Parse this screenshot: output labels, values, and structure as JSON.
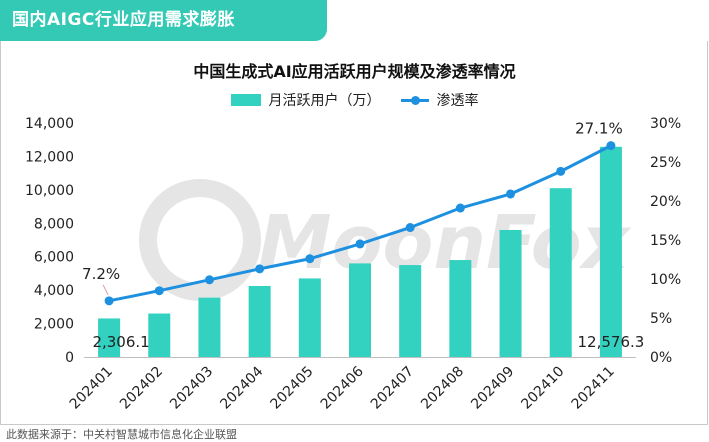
{
  "banner": {
    "text": "国内AIGC行业应用需求膨胀"
  },
  "watermark": {
    "text": "MoonFox"
  },
  "source": {
    "text": "此数据来源于：中关村智慧城市信息化企业联盟"
  },
  "colors": {
    "bar": "#33d1bf",
    "line": "#1e90e0",
    "banner": "#33c9b5",
    "watermark": "#e5e5e5"
  },
  "chart_data": {
    "type": "bar",
    "title": "中国生成式AI应用活跃用户规模及渗透率情况",
    "categories": [
      "202401",
      "202402",
      "202403",
      "202404",
      "202405",
      "202406",
      "202407",
      "202408",
      "202409",
      "202410",
      "202411"
    ],
    "series": [
      {
        "name": "月活跃用户（万）",
        "type": "bar",
        "axis": "left",
        "values": [
          2306.1,
          2600,
          3550,
          4250,
          4700,
          5600,
          5500,
          5800,
          7600,
          10100,
          12576.3
        ]
      },
      {
        "name": "渗透率",
        "type": "line",
        "axis": "right",
        "values": [
          7.2,
          8.5,
          9.9,
          11.3,
          12.6,
          14.5,
          16.6,
          19.1,
          20.9,
          23.8,
          27.1
        ]
      }
    ],
    "data_labels": [
      {
        "series": 0,
        "index": 0,
        "text": "2,306.1"
      },
      {
        "series": 0,
        "index": 10,
        "text": "12,576.3"
      },
      {
        "series": 1,
        "index": 0,
        "text": "7.2%"
      },
      {
        "series": 1,
        "index": 10,
        "text": "27.1%"
      }
    ],
    "y_left": {
      "ylim": [
        0,
        14000
      ],
      "ticks": [
        0,
        2000,
        4000,
        6000,
        8000,
        10000,
        12000,
        14000
      ],
      "tick_labels": [
        "0",
        "2,000",
        "4,000",
        "6,000",
        "8,000",
        "10,000",
        "12,000",
        "14,000"
      ]
    },
    "y_right": {
      "ylim": [
        0,
        30
      ],
      "ticks": [
        0,
        5,
        10,
        15,
        20,
        25,
        30
      ],
      "tick_labels": [
        "0%",
        "5%",
        "10%",
        "15%",
        "20%",
        "25%",
        "30%"
      ]
    },
    "grid": false,
    "legend_position": "top"
  }
}
